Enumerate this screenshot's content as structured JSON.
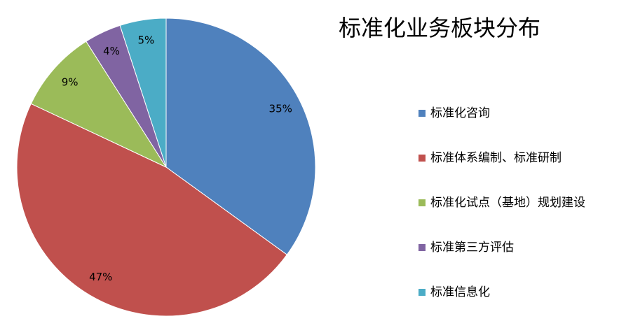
{
  "chart_data": {
    "type": "pie",
    "title": "标准化业务板块分布",
    "categories": [
      "标准化咨询",
      "标准体系编制、标准研制",
      "标准化试点（基地）规划建设",
      "标准第三方评估",
      "标准信息化"
    ],
    "values": [
      35,
      47,
      9,
      4,
      5
    ],
    "value_labels": [
      "35%",
      "47%",
      "9%",
      "4%",
      "5%"
    ],
    "colors": [
      "#4f81bd",
      "#c0504d",
      "#9bbb59",
      "#8064a2",
      "#4bacc6"
    ],
    "legend": "right"
  }
}
